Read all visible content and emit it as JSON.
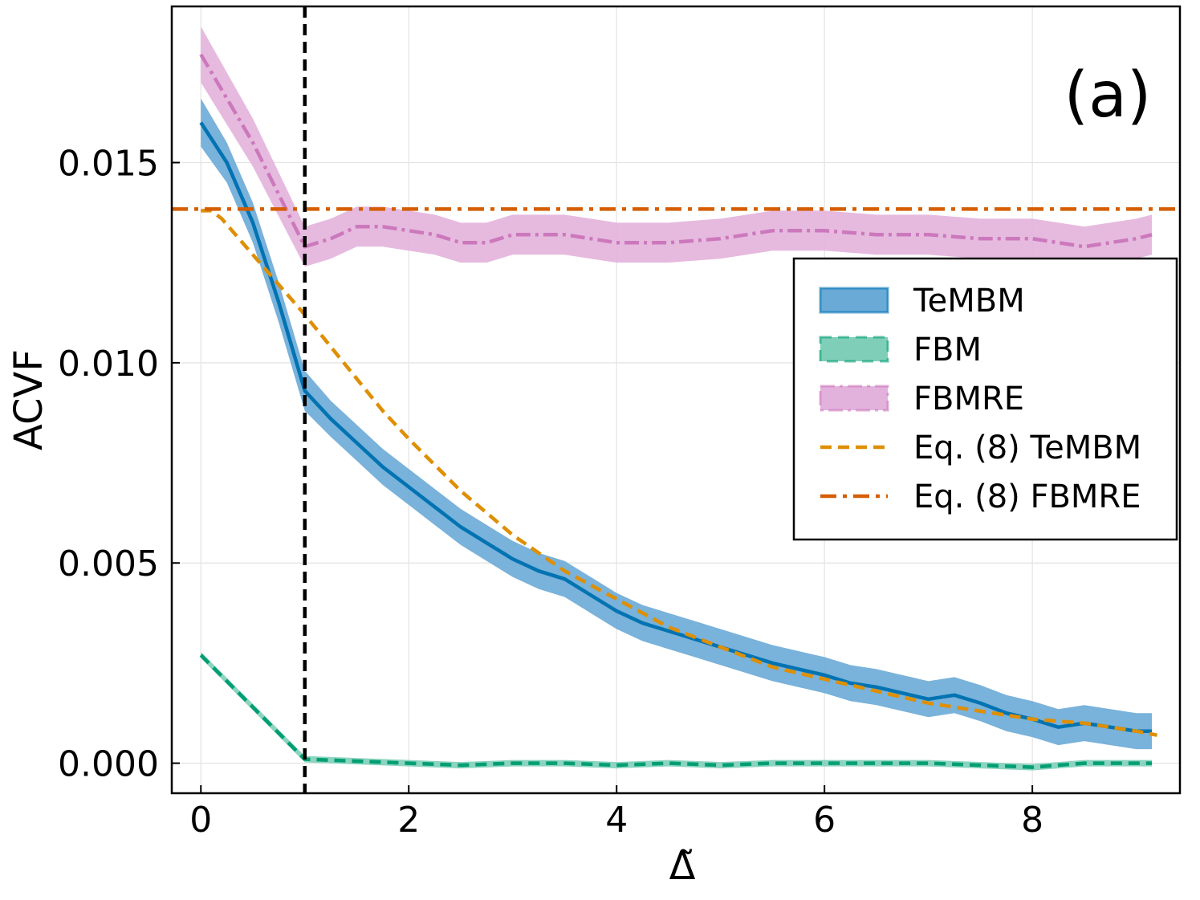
{
  "chart_data": {
    "type": "line",
    "panel_label": "(a)",
    "xlabel": "Δ̃",
    "ylabel": "ACVF",
    "xlim": [
      -0.28,
      9.42
    ],
    "ylim": [
      -0.00075,
      0.0189
    ],
    "x_ticks": [
      0,
      2,
      4,
      6,
      8
    ],
    "x_tick_labels": [
      "0",
      "2",
      "4",
      "6",
      "8"
    ],
    "y_ticks": [
      0.0,
      0.005,
      0.01,
      0.015
    ],
    "y_tick_labels": [
      "0.000",
      "0.005",
      "0.010",
      "0.015"
    ],
    "grid": true,
    "legend_position": "upper-right",
    "vertical_marker": {
      "x": 1.0,
      "style": "dashed",
      "color": "#000000"
    },
    "series": [
      {
        "name": "TeMBM",
        "kind": "band",
        "color": "#0173b2",
        "band_color": "#6aaad6",
        "x": [
          0,
          0.25,
          0.5,
          0.75,
          1.0,
          1.25,
          1.5,
          1.75,
          2.0,
          2.25,
          2.5,
          2.75,
          3.0,
          3.25,
          3.5,
          3.75,
          4.0,
          4.25,
          4.5,
          4.75,
          5.0,
          5.25,
          5.5,
          5.75,
          6.0,
          6.25,
          6.5,
          6.75,
          7.0,
          7.25,
          7.5,
          7.75,
          8.0,
          8.25,
          8.5,
          8.75,
          9.0,
          9.15
        ],
        "y": [
          0.016,
          0.015,
          0.0135,
          0.0115,
          0.0093,
          0.0086,
          0.008,
          0.0074,
          0.0069,
          0.0064,
          0.0059,
          0.0055,
          0.0051,
          0.0048,
          0.0046,
          0.0042,
          0.0038,
          0.0035,
          0.0033,
          0.0031,
          0.0029,
          0.0027,
          0.0025,
          0.00235,
          0.0022,
          0.002,
          0.0019,
          0.00175,
          0.0016,
          0.0017,
          0.0015,
          0.00125,
          0.0011,
          0.0009,
          0.001,
          0.0009,
          0.0008,
          0.0008
        ],
        "err": [
          0.0006,
          0.0005,
          0.0005,
          0.0005,
          0.0005,
          0.00045,
          0.00045,
          0.00045,
          0.00045,
          0.00045,
          0.00045,
          0.00045,
          0.00045,
          0.00045,
          0.00045,
          0.00045,
          0.00045,
          0.00045,
          0.00045,
          0.00045,
          0.00045,
          0.00045,
          0.00045,
          0.00045,
          0.00045,
          0.00045,
          0.00045,
          0.00045,
          0.00045,
          0.00045,
          0.00045,
          0.00045,
          0.00045,
          0.00045,
          0.00045,
          0.00045,
          0.00045,
          0.00045
        ]
      },
      {
        "name": "FBM",
        "kind": "band",
        "color": "#029e73",
        "band_color": "#7fcfb8",
        "x": [
          0,
          1.0,
          1.5,
          2.0,
          2.5,
          3.0,
          3.5,
          4.0,
          4.5,
          5.0,
          5.5,
          6.0,
          6.5,
          7.0,
          7.5,
          8.0,
          8.5,
          9.0,
          9.15
        ],
        "y": [
          0.0027,
          0.0001,
          5e-05,
          0.0,
          -5e-05,
          0.0,
          0.0,
          -5e-05,
          0.0,
          -5e-05,
          0.0,
          0.0,
          0.0,
          0.0,
          -5e-05,
          -0.0001,
          0.0,
          0.0,
          0.0
        ],
        "err": [
          8e-05,
          8e-05,
          8e-05,
          8e-05,
          8e-05,
          8e-05,
          8e-05,
          8e-05,
          8e-05,
          8e-05,
          8e-05,
          8e-05,
          8e-05,
          8e-05,
          8e-05,
          8e-05,
          8e-05,
          8e-05,
          8e-05
        ]
      },
      {
        "name": "FBMRE",
        "kind": "band",
        "color": "#cc78bc",
        "band_color": "#e3b2dc",
        "x": [
          0,
          0.5,
          1.0,
          1.25,
          1.5,
          1.75,
          2.0,
          2.25,
          2.5,
          2.75,
          3.0,
          3.5,
          4.0,
          4.5,
          5.0,
          5.5,
          6.0,
          6.5,
          7.0,
          7.5,
          8.0,
          8.5,
          9.0,
          9.15
        ],
        "y": [
          0.0177,
          0.0155,
          0.0129,
          0.0131,
          0.0134,
          0.0134,
          0.0133,
          0.0132,
          0.013,
          0.013,
          0.0132,
          0.0132,
          0.013,
          0.013,
          0.0131,
          0.0133,
          0.0133,
          0.0132,
          0.0132,
          0.0131,
          0.0131,
          0.0129,
          0.0131,
          0.0132
        ],
        "err": [
          0.0007,
          0.0006,
          0.0005,
          0.0005,
          0.0005,
          0.0005,
          0.0005,
          0.0005,
          0.0005,
          0.0005,
          0.0005,
          0.0005,
          0.0005,
          0.0005,
          0.0005,
          0.0005,
          0.0005,
          0.0005,
          0.0005,
          0.0005,
          0.0005,
          0.0005,
          0.0005,
          0.0005
        ]
      },
      {
        "name": "Eq. (8) TeMBM",
        "kind": "line",
        "style": "dashed",
        "color": "#de8f05",
        "x": [
          0,
          0.1,
          0.2,
          0.3,
          0.4,
          0.5,
          0.6,
          0.7,
          0.8,
          0.9,
          1.0,
          1.25,
          1.5,
          1.75,
          2.0,
          2.5,
          3.0,
          3.5,
          4.0,
          4.5,
          5.0,
          5.5,
          6.0,
          6.5,
          7.0,
          7.5,
          8.0,
          8.5,
          9.0,
          9.2
        ],
        "y": [
          0.0138,
          0.0138,
          0.0136,
          0.0133,
          0.013,
          0.0127,
          0.0124,
          0.0121,
          0.0118,
          0.0115,
          0.0112,
          0.0104,
          0.0096,
          0.0088,
          0.0081,
          0.0068,
          0.0057,
          0.0048,
          0.0041,
          0.0034,
          0.0029,
          0.0024,
          0.0021,
          0.0018,
          0.0015,
          0.0013,
          0.0011,
          0.001,
          0.0008,
          0.0007
        ]
      },
      {
        "name": "Eq. (8) FBMRE",
        "kind": "hline",
        "style": "dashdot",
        "color": "#d55e00",
        "y": 0.01384
      }
    ]
  },
  "legend": [
    {
      "name": "TeMBM",
      "type": "band",
      "fill": "#6aaad6",
      "stroke": "#0173b2",
      "dash": ""
    },
    {
      "name": "FBM",
      "type": "band",
      "fill": "#7fcfb8",
      "stroke": "#029e73",
      "dash": "14 8"
    },
    {
      "name": "FBMRE",
      "type": "band",
      "fill": "#e3b2dc",
      "stroke": "#cc78bc",
      "dash": "18 6 4 6"
    },
    {
      "name": "Eq. (8) TeMBM",
      "type": "line",
      "stroke": "#de8f05",
      "dash": "14 8"
    },
    {
      "name": "Eq. (8) FBMRE",
      "type": "line",
      "stroke": "#d55e00",
      "dash": "20 8 5 8"
    }
  ]
}
